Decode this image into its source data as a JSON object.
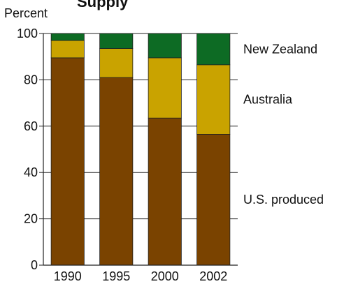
{
  "chart_data": {
    "type": "bar",
    "stacked": true,
    "title": "Supply",
    "ylabel": "Percent",
    "xlabel": "",
    "ylim": [
      0,
      100
    ],
    "yticks": [
      0,
      20,
      40,
      60,
      80,
      100
    ],
    "grid": true,
    "legend": "right",
    "categories": [
      "1990",
      "1995",
      "2000",
      "2002"
    ],
    "series": [
      {
        "name": "U.S. produced",
        "color": "#7a4300",
        "values": [
          89.5,
          81,
          63.5,
          56.5
        ]
      },
      {
        "name": "Australia",
        "color": "#c9a300",
        "values": [
          7.5,
          12.5,
          26,
          30
        ]
      },
      {
        "name": "New Zealand",
        "color": "#0d6b24",
        "values": [
          3,
          6.5,
          10.5,
          13.5
        ]
      }
    ]
  }
}
